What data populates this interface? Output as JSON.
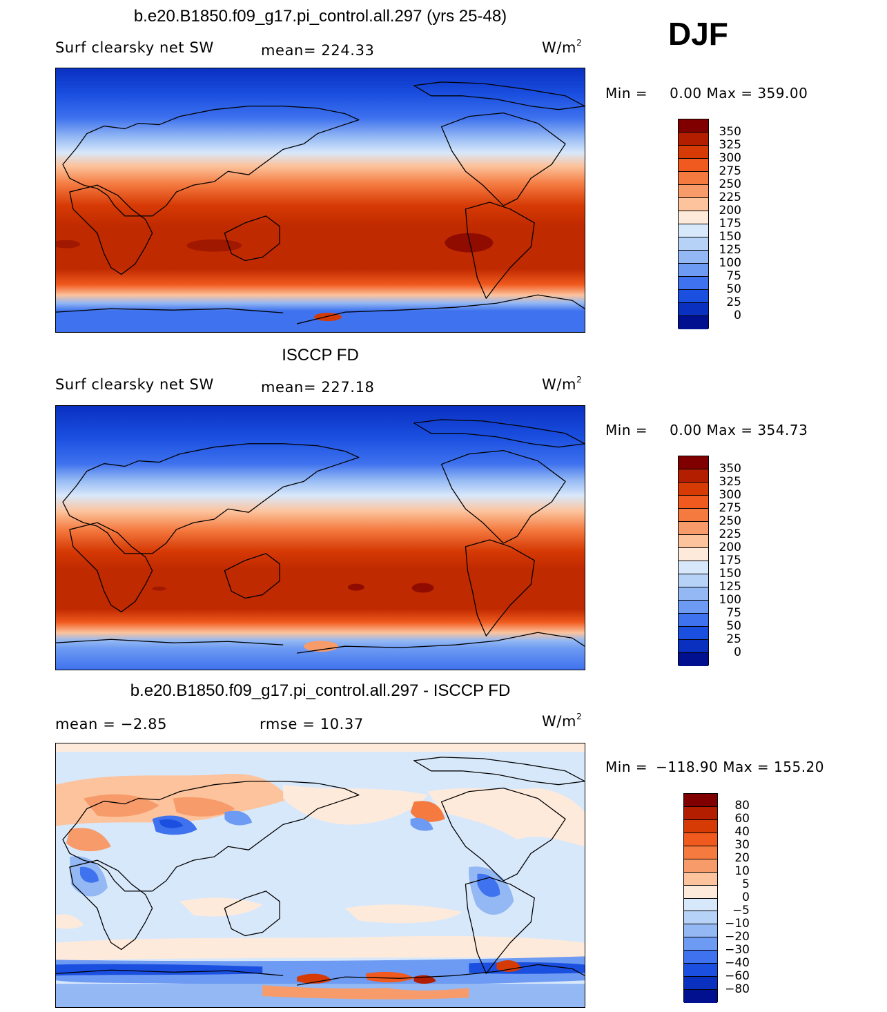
{
  "season": "DJF",
  "panels": [
    {
      "title": "b.e20.B1850.f09_g17.pi_control.all.297 (yrs 25-48)",
      "left_label": "Surf  clearsky  net  SW",
      "center_label": "mean=  224.33",
      "units": "W/m",
      "units_sup": "2",
      "min_label": "Min  =",
      "minmax_values": "0.00  Max  =  359.00"
    },
    {
      "title": "ISCCP FD",
      "left_label": "Surf  clearsky  net  SW",
      "center_label": "mean=  227.18",
      "units": "W/m",
      "units_sup": "2",
      "min_label": "Min  =",
      "minmax_values": "0.00  Max  =  354.73"
    },
    {
      "title": "b.e20.B1850.f09_g17.pi_control.all.297 - ISCCP FD",
      "left_label": "mean  =    −2.85",
      "center_label": "rmse  =    10.37",
      "units": "W/m",
      "units_sup": "2",
      "min_label": "Min  =",
      "minmax_values": "−118.90  Max  =  155.20"
    }
  ],
  "colorbars": {
    "absolute": {
      "ticks": [
        "350",
        "325",
        "300",
        "275",
        "250",
        "225",
        "200",
        "175",
        "150",
        "125",
        "100",
        "75",
        "50",
        "25",
        "0"
      ],
      "colors": [
        "#800000",
        "#b31d00",
        "#d63a05",
        "#f05a1e",
        "#f47a40",
        "#f89b6a",
        "#fcc39c",
        "#feeadb",
        "#d8e8fb",
        "#b6d2f7",
        "#93b8f4",
        "#6d9af2",
        "#3f72ee",
        "#1a4fe0",
        "#0a30c0",
        "#00108f"
      ]
    },
    "difference": {
      "ticks": [
        "80",
        "60",
        "40",
        "30",
        "20",
        "10",
        "5",
        "0",
        "−5",
        "−10",
        "−20",
        "−30",
        "−40",
        "−60",
        "−80"
      ],
      "colors": [
        "#800000",
        "#b31d00",
        "#d63a05",
        "#f05a1e",
        "#f47a40",
        "#f89b6a",
        "#fcc39c",
        "#feeadb",
        "#d8e8fb",
        "#b6d2f7",
        "#93b8f4",
        "#6d9af2",
        "#3f72ee",
        "#1a4fe0",
        "#0a30c0",
        "#00108f"
      ]
    }
  }
}
